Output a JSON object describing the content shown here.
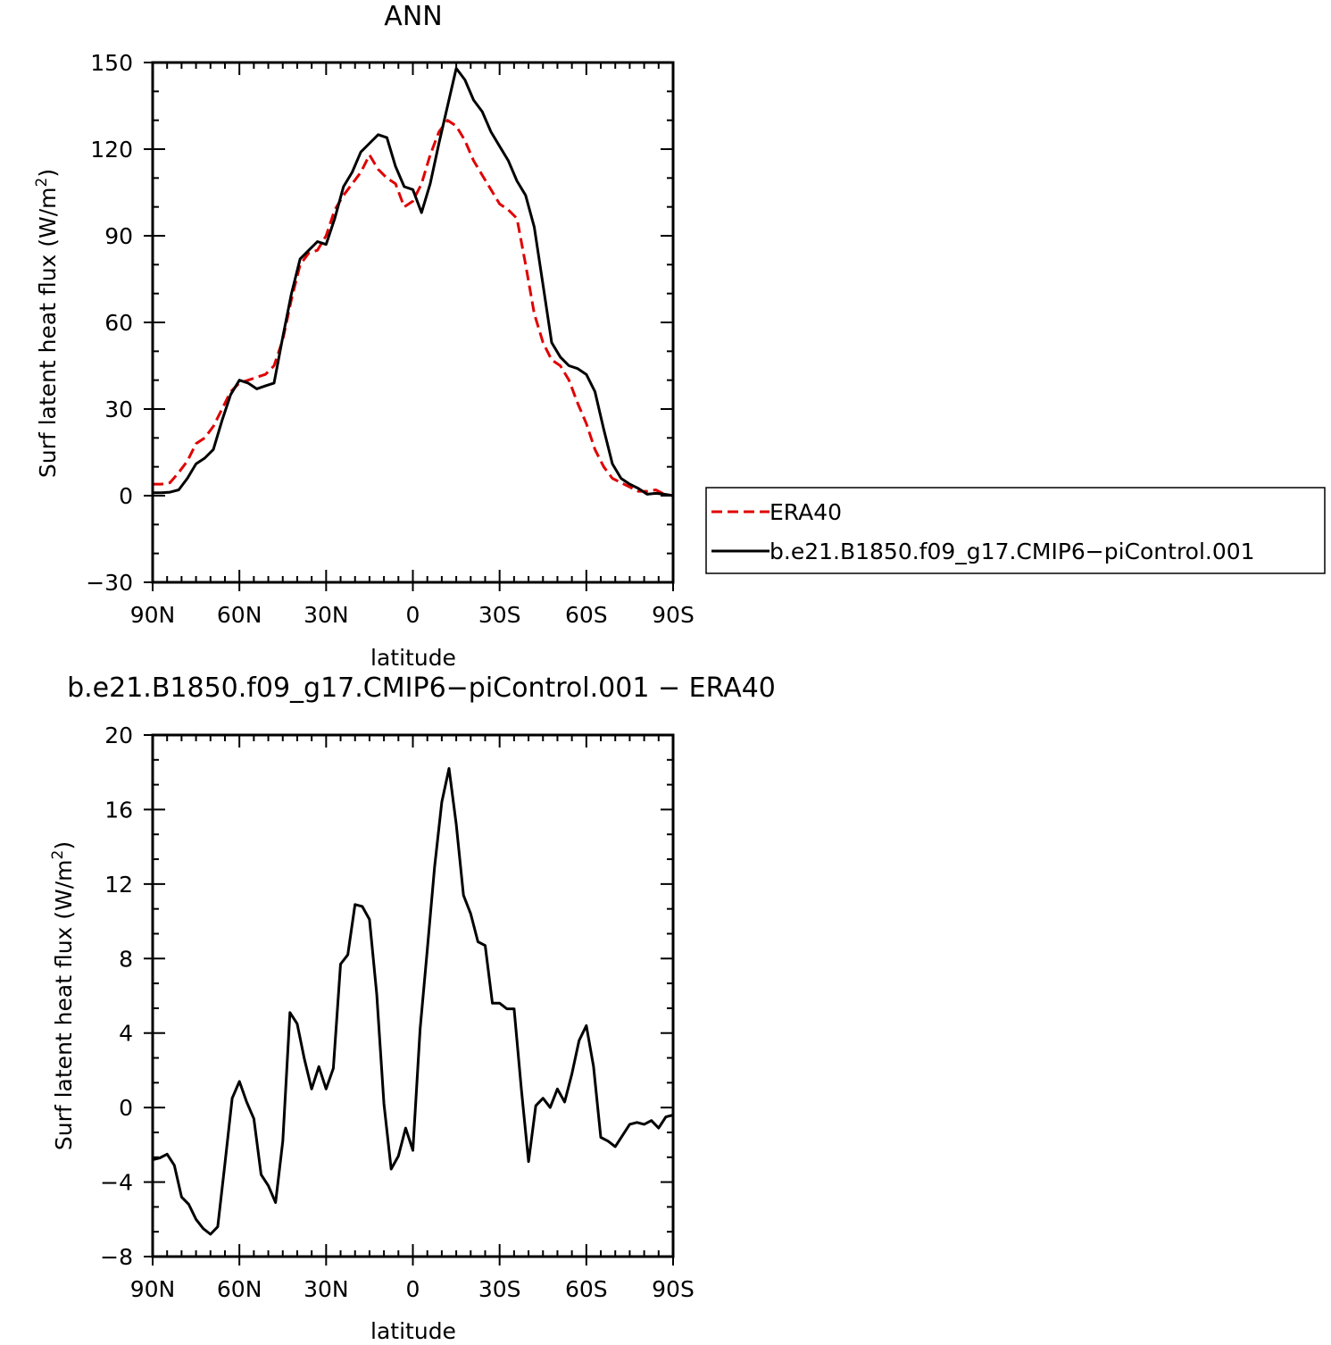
{
  "chart_data": [
    {
      "type": "line",
      "title": "ANN",
      "xlabel": "latitude",
      "ylabel": "Surf latent heat flux (W/m²)",
      "ylabel_parts": [
        "Surf latent heat flux (W/m",
        "2",
        ")"
      ],
      "xlim": [
        90,
        -90
      ],
      "ylim": [
        -30,
        150
      ],
      "x_ticks": [
        {
          "value": 90,
          "label": "90N"
        },
        {
          "value": 60,
          "label": "60N"
        },
        {
          "value": 30,
          "label": "30N"
        },
        {
          "value": 0,
          "label": "0"
        },
        {
          "value": -30,
          "label": "30S"
        },
        {
          "value": -60,
          "label": "60S"
        },
        {
          "value": -90,
          "label": "90S"
        }
      ],
      "y_ticks": [
        {
          "value": -30,
          "label": "−30"
        },
        {
          "value": 0,
          "label": "0"
        },
        {
          "value": 30,
          "label": "30"
        },
        {
          "value": 60,
          "label": "60"
        },
        {
          "value": 90,
          "label": "90"
        },
        {
          "value": 120,
          "label": "120"
        },
        {
          "value": 150,
          "label": "150"
        }
      ],
      "legend": {
        "placement": "right",
        "entries": [
          {
            "name": "ERA40",
            "color": "#e00000",
            "dash": true
          },
          {
            "name": "b.e21.B1850.f09_g17.CMIP6−piControl.001",
            "color": "#000000",
            "dash": false
          }
        ]
      },
      "series": [
        {
          "name": "ERA40",
          "color": "#e00000",
          "dash": true,
          "points": [
            [
              90,
              4
            ],
            [
              87,
              4
            ],
            [
              84,
              4.5
            ],
            [
              81,
              8
            ],
            [
              78,
              12
            ],
            [
              75,
              18
            ],
            [
              72,
              20
            ],
            [
              69,
              24
            ],
            [
              66,
              30
            ],
            [
              63,
              36
            ],
            [
              60,
              39
            ],
            [
              57,
              40
            ],
            [
              54,
              41
            ],
            [
              51,
              42
            ],
            [
              48,
              45
            ],
            [
              45,
              54
            ],
            [
              42,
              68
            ],
            [
              39,
              80
            ],
            [
              36,
              84
            ],
            [
              33,
              85
            ],
            [
              30,
              90
            ],
            [
              27,
              99
            ],
            [
              24,
              104
            ],
            [
              21,
              108
            ],
            [
              18,
              112
            ],
            [
              15,
              118
            ],
            [
              12,
              113
            ],
            [
              9,
              110
            ],
            [
              6,
              108
            ],
            [
              3,
              100
            ],
            [
              0,
              102
            ],
            [
              -3,
              108
            ],
            [
              -6,
              118
            ],
            [
              -9,
              126
            ],
            [
              -12,
              130
            ],
            [
              -15,
              128
            ],
            [
              -18,
              123
            ],
            [
              -21,
              116
            ],
            [
              -24,
              111
            ],
            [
              -27,
              106
            ],
            [
              -30,
              101
            ],
            [
              -33,
              99
            ],
            [
              -36,
              96
            ],
            [
              -39,
              80
            ],
            [
              -42,
              63
            ],
            [
              -45,
              53
            ],
            [
              -48,
              47
            ],
            [
              -51,
              45
            ],
            [
              -54,
              40
            ],
            [
              -57,
              32
            ],
            [
              -60,
              25
            ],
            [
              -63,
              16
            ],
            [
              -66,
              10
            ],
            [
              -69,
              6
            ],
            [
              -72,
              4.5
            ],
            [
              -75,
              3
            ],
            [
              -78,
              1.5
            ],
            [
              -81,
              1.5
            ],
            [
              -84,
              2
            ],
            [
              -87,
              0.5
            ],
            [
              -90,
              0
            ]
          ]
        },
        {
          "name": "b.e21.B1850.f09_g17.CMIP6−piControl.001",
          "color": "#000000",
          "dash": false,
          "points": [
            [
              90,
              1
            ],
            [
              87,
              1
            ],
            [
              84,
              1.2
            ],
            [
              81,
              2
            ],
            [
              78,
              6
            ],
            [
              75,
              11
            ],
            [
              72,
              13
            ],
            [
              69,
              16
            ],
            [
              66,
              26
            ],
            [
              63,
              35
            ],
            [
              60,
              40
            ],
            [
              57,
              39
            ],
            [
              54,
              37
            ],
            [
              51,
              38
            ],
            [
              48,
              39
            ],
            [
              45,
              55
            ],
            [
              42,
              70
            ],
            [
              39,
              82
            ],
            [
              36,
              85
            ],
            [
              33,
              88
            ],
            [
              30,
              87
            ],
            [
              27,
              96
            ],
            [
              24,
              107
            ],
            [
              21,
              112
            ],
            [
              18,
              119
            ],
            [
              15,
              122
            ],
            [
              12,
              125
            ],
            [
              9,
              124
            ],
            [
              6,
              114
            ],
            [
              3,
              107
            ],
            [
              0,
              106
            ],
            [
              -3,
              98
            ],
            [
              -6,
              108
            ],
            [
              -9,
              122
            ],
            [
              -12,
              135
            ],
            [
              -15,
              148
            ],
            [
              -18,
              144
            ],
            [
              -21,
              137
            ],
            [
              -24,
              133
            ],
            [
              -27,
              126
            ],
            [
              -30,
              121
            ],
            [
              -33,
              116
            ],
            [
              -36,
              109
            ],
            [
              -39,
              104
            ],
            [
              -42,
              93
            ],
            [
              -45,
              73
            ],
            [
              -48,
              53
            ],
            [
              -51,
              48
            ],
            [
              -54,
              45
            ],
            [
              -57,
              44
            ],
            [
              -60,
              42
            ],
            [
              -63,
              36
            ],
            [
              -66,
              23
            ],
            [
              -69,
              11
            ],
            [
              -72,
              6
            ],
            [
              -75,
              4
            ],
            [
              -78,
              2.5
            ],
            [
              -81,
              0.5
            ],
            [
              -84,
              0.8
            ],
            [
              -87,
              0.5
            ],
            [
              -90,
              0
            ]
          ]
        }
      ]
    },
    {
      "type": "line",
      "title": "b.e21.B1850.f09_g17.CMIP6−piControl.001 − ERA40",
      "xlabel": "latitude",
      "ylabel": "Surf latent heat flux (W/m²)",
      "ylabel_parts": [
        "Surf latent heat flux (W/m",
        "2",
        ")"
      ],
      "xlim": [
        90,
        -90
      ],
      "ylim": [
        -8,
        20
      ],
      "x_ticks": [
        {
          "value": 90,
          "label": "90N"
        },
        {
          "value": 60,
          "label": "60N"
        },
        {
          "value": 30,
          "label": "30N"
        },
        {
          "value": 0,
          "label": "0"
        },
        {
          "value": -30,
          "label": "30S"
        },
        {
          "value": -60,
          "label": "60S"
        },
        {
          "value": -90,
          "label": "90S"
        }
      ],
      "y_ticks": [
        {
          "value": -8,
          "label": "−8"
        },
        {
          "value": -4,
          "label": "−4"
        },
        {
          "value": 0,
          "label": "0"
        },
        {
          "value": 4,
          "label": "4"
        },
        {
          "value": 8,
          "label": "8"
        },
        {
          "value": 12,
          "label": "12"
        },
        {
          "value": 16,
          "label": "16"
        },
        {
          "value": 20,
          "label": "20"
        }
      ],
      "series": [
        {
          "color": "#000000",
          "dash": false,
          "points": [
            [
              90,
              -2.8
            ],
            [
              87.5,
              -2.7
            ],
            [
              85,
              -2.5
            ],
            [
              82.5,
              -3.1
            ],
            [
              80,
              -4.8
            ],
            [
              77.5,
              -5.2
            ],
            [
              75,
              -6
            ],
            [
              72.5,
              -6.5
            ],
            [
              70,
              -6.8
            ],
            [
              67.5,
              -6.4
            ],
            [
              65,
              -3
            ],
            [
              62.5,
              0.5
            ],
            [
              60,
              1.4
            ],
            [
              57.5,
              0.3
            ],
            [
              55,
              -0.6
            ],
            [
              52.5,
              -3.6
            ],
            [
              50,
              -4.2
            ],
            [
              47.5,
              -5.1
            ],
            [
              45,
              -1.8
            ],
            [
              42.5,
              5.1
            ],
            [
              40,
              4.5
            ],
            [
              37.5,
              2.6
            ],
            [
              35,
              1
            ],
            [
              32.5,
              2.2
            ],
            [
              30,
              1
            ],
            [
              27.5,
              2.1
            ],
            [
              25,
              7.7
            ],
            [
              22.5,
              8.2
            ],
            [
              20,
              10.9
            ],
            [
              17.5,
              10.8
            ],
            [
              15,
              10.1
            ],
            [
              12.5,
              6.1
            ],
            [
              10,
              0.2
            ],
            [
              7.5,
              -3.3
            ],
            [
              5,
              -2.6
            ],
            [
              2.5,
              -1.1
            ],
            [
              0,
              -2.3
            ],
            [
              -2.5,
              4.2
            ],
            [
              -5,
              8.5
            ],
            [
              -7.5,
              12.9
            ],
            [
              -10,
              16.4
            ],
            [
              -12.5,
              18.2
            ],
            [
              -15,
              15.2
            ],
            [
              -17.5,
              11.4
            ],
            [
              -20,
              10.4
            ],
            [
              -22.5,
              8.9
            ],
            [
              -25,
              8.7
            ],
            [
              -27.5,
              5.6
            ],
            [
              -30,
              5.6
            ],
            [
              -32.5,
              5.3
            ],
            [
              -35,
              5.3
            ],
            [
              -37.5,
              1
            ],
            [
              -40,
              -2.9
            ],
            [
              -42.5,
              0.1
            ],
            [
              -45,
              0.5
            ],
            [
              -47.5,
              0
            ],
            [
              -50,
              1
            ],
            [
              -52.5,
              0.3
            ],
            [
              -55,
              1.8
            ],
            [
              -57.5,
              3.6
            ],
            [
              -60,
              4.4
            ],
            [
              -62.5,
              2.2
            ],
            [
              -65,
              -1.6
            ],
            [
              -67.5,
              -1.8
            ],
            [
              -70,
              -2.1
            ],
            [
              -72.5,
              -1.5
            ],
            [
              -75,
              -0.9
            ],
            [
              -77.5,
              -0.8
            ],
            [
              -80,
              -0.9
            ],
            [
              -82.5,
              -0.7
            ],
            [
              -85,
              -1.1
            ],
            [
              -87.5,
              -0.5
            ],
            [
              -90,
              -0.4
            ]
          ]
        }
      ]
    }
  ]
}
